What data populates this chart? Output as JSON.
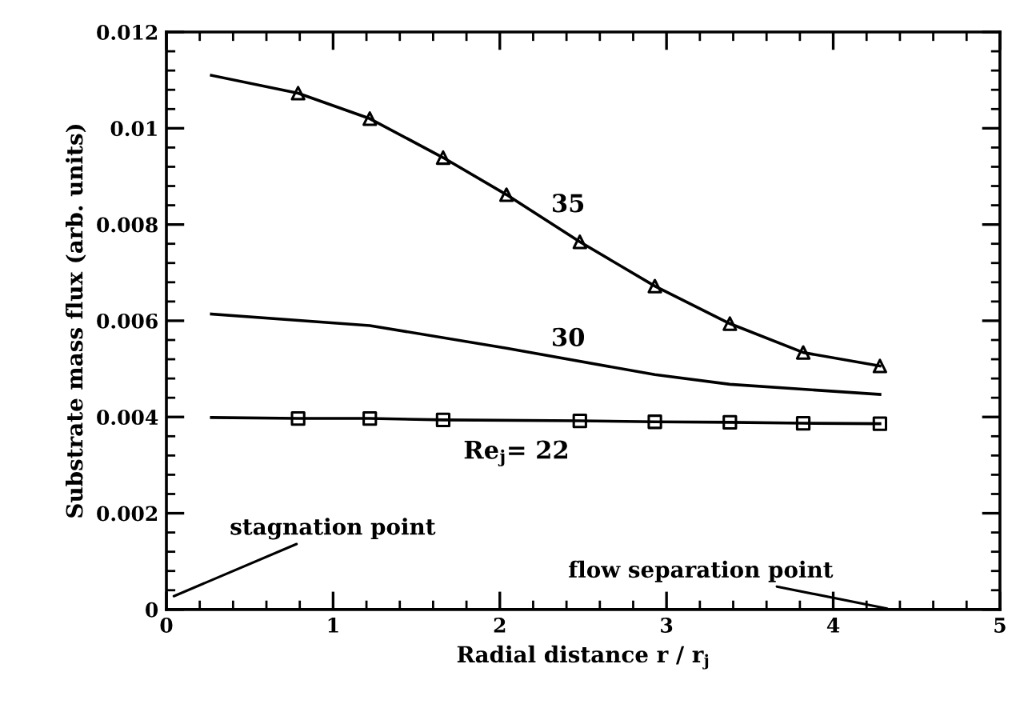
{
  "chart_data": {
    "type": "line",
    "xlabel": "Radial distance r / r$_{j}$",
    "ylabel": "Substrate mass flux (arb. units)",
    "xlim": [
      0,
      5
    ],
    "ylim": [
      0,
      0.012
    ],
    "xticks": [
      0,
      1,
      2,
      3,
      4,
      5
    ],
    "yticks": [
      0,
      0.002,
      0.004,
      0.006,
      0.008,
      {
        "value": 0.01,
        "label": "0.01"
      },
      0.012
    ],
    "grid": false,
    "legend": false,
    "series": [
      {
        "color": "#000000",
        "marker": "none",
        "x": [
          0.27,
          0.79,
          1.22,
          1.66,
          2.04,
          2.48,
          2.93,
          3.38,
          3.82,
          4.28
        ],
        "values": [
          0.0111,
          0.01073,
          0.0102,
          0.00939,
          0.00862,
          0.00764,
          0.00672,
          0.00594,
          0.00534,
          0.00506
        ]
      },
      {
        "type": "scatter",
        "color": "#000000",
        "marker": "triangle",
        "x": [
          0.79,
          1.22,
          1.66,
          2.04,
          2.48,
          2.93,
          3.38,
          3.82,
          4.28
        ],
        "values": [
          0.01073,
          0.0102,
          0.00939,
          0.00862,
          0.00764,
          0.00672,
          0.00594,
          0.00534,
          0.00506
        ]
      },
      {
        "color": "#000000",
        "marker": "none",
        "x": [
          0.27,
          1.22,
          2.04,
          2.93,
          3.38,
          4.28
        ],
        "values": [
          0.00614,
          0.0059,
          0.00543,
          0.00488,
          0.00468,
          0.00447
        ]
      },
      {
        "color": "#000000",
        "marker": "none",
        "x": [
          0.27,
          0.79,
          1.22,
          1.66,
          2.48,
          2.93,
          3.38,
          3.82,
          4.28
        ],
        "values": [
          0.00399,
          0.00397,
          0.00397,
          0.00394,
          0.00392,
          0.0039,
          0.00389,
          0.00387,
          0.00386
        ]
      },
      {
        "type": "scatter",
        "color": "#000000",
        "marker": "square",
        "x": [
          0.79,
          1.22,
          1.66,
          2.48,
          2.93,
          3.38,
          3.82,
          4.28
        ],
        "values": [
          0.00397,
          0.00397,
          0.00394,
          0.00392,
          0.0039,
          0.00389,
          0.00387,
          0.00386
        ]
      }
    ],
    "annotations": [
      "35",
      "30",
      "Re$_{j}$= 22",
      "stagnation point",
      "flow separation point"
    ]
  }
}
